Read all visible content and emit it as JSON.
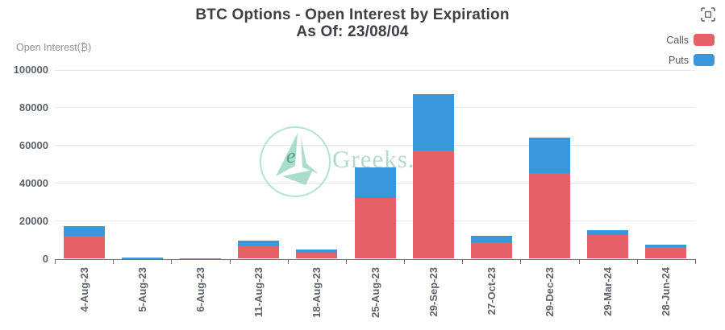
{
  "header": {
    "title_line1": "BTC Options - Open Interest by Expiration",
    "title_line2": "As Of: 23/08/04"
  },
  "y_axis_title": "Open Interest(₿)",
  "legend": {
    "items": [
      {
        "label": "Calls",
        "color": "#e56167"
      },
      {
        "label": "Puts",
        "color": "#3898db"
      }
    ]
  },
  "toolbox": {
    "icon": "restore-icon"
  },
  "watermark": {
    "logo_letter": "e",
    "text": "Greeks.L"
  },
  "colors": {
    "calls": "#e56167",
    "puts": "#3898db",
    "grid": "#e3e8f2",
    "axis": "#6E7079",
    "title": "#3e4045",
    "watermark": "#b2dcc9"
  },
  "chart_data": {
    "type": "bar",
    "stacked": true,
    "title": "BTC Options - Open Interest by Expiration As Of: 23/08/04",
    "ylabel": "Open Interest(₿)",
    "xlabel": "",
    "ylim": [
      0,
      100000
    ],
    "yticks": [
      0,
      20000,
      40000,
      60000,
      80000,
      100000
    ],
    "grid": true,
    "legend_position": "top-right",
    "categories": [
      "4-Aug-23",
      "5-Aug-23",
      "6-Aug-23",
      "11-Aug-23",
      "18-Aug-23",
      "25-Aug-23",
      "29-Sep-23",
      "27-Oct-23",
      "29-Dec-23",
      "29-Mar-24",
      "28-Jun-24"
    ],
    "series": [
      {
        "name": "Calls",
        "color": "#e56167",
        "values": [
          12300,
          200,
          100,
          7000,
          3100,
          32300,
          57200,
          8900,
          45600,
          12700,
          6000
        ]
      },
      {
        "name": "Puts",
        "color": "#3898db",
        "values": [
          5100,
          600,
          200,
          2700,
          1600,
          16300,
          29900,
          3200,
          18700,
          2400,
          1500
        ]
      }
    ]
  }
}
